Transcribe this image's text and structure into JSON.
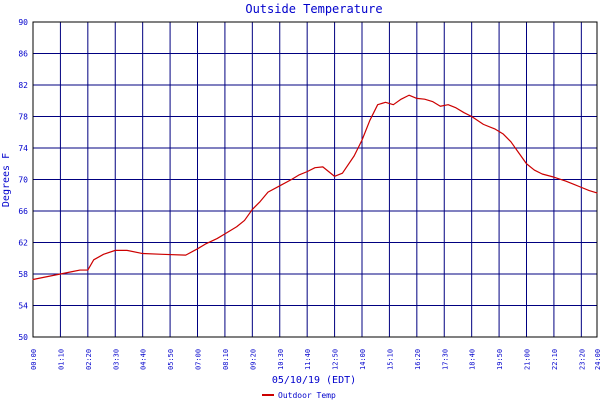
{
  "chart_data": {
    "type": "line",
    "title": "Outside Temperature",
    "xlabel": "05/10/19 (EDT)",
    "ylabel": "Degrees F",
    "ylim": [
      50,
      90
    ],
    "xlim": [
      "00:00",
      "24:00"
    ],
    "grid": true,
    "legend_placement": "bottom-center",
    "colors": {
      "series": "#cc0000",
      "grid": "#000080",
      "text": "#0000cc",
      "axis": "#000000",
      "background": "#ffffff"
    },
    "y_ticks": [
      90,
      86,
      82,
      78,
      74,
      70,
      66,
      62,
      58,
      54,
      50
    ],
    "x_tick_labels": [
      "00:00",
      "01:10",
      "02:20",
      "03:30",
      "04:40",
      "05:50",
      "07:00",
      "08:10",
      "09:20",
      "10:30",
      "11:40",
      "12:50",
      "14:00",
      "15:10",
      "16:20",
      "17:30",
      "18:40",
      "19:50",
      "21:00",
      "22:10",
      "23:20",
      "24:00"
    ],
    "series": [
      {
        "name": "Outdoor Temp",
        "x": [
          "00:00",
          "00:30",
          "01:10",
          "01:40",
          "02:00",
          "02:20",
          "02:35",
          "03:00",
          "03:30",
          "04:00",
          "04:40",
          "05:30",
          "06:30",
          "07:00",
          "07:20",
          "07:50",
          "08:10",
          "08:40",
          "09:00",
          "09:20",
          "09:40",
          "10:00",
          "10:30",
          "11:00",
          "11:20",
          "11:40",
          "12:00",
          "12:20",
          "12:50",
          "13:10",
          "13:40",
          "14:00",
          "14:20",
          "14:40",
          "15:00",
          "15:20",
          "15:40",
          "16:00",
          "16:20",
          "16:40",
          "17:00",
          "17:20",
          "17:40",
          "18:00",
          "18:20",
          "18:40",
          "19:10",
          "19:40",
          "20:00",
          "20:20",
          "20:40",
          "21:00",
          "21:20",
          "21:40",
          "22:10",
          "22:40",
          "23:00",
          "23:20",
          "23:40",
          "24:00"
        ],
        "values": [
          57.3,
          57.6,
          58.0,
          58.3,
          58.5,
          58.5,
          59.8,
          60.5,
          61.0,
          61.0,
          60.6,
          60.5,
          60.4,
          61.2,
          61.8,
          62.5,
          63.1,
          64.0,
          64.8,
          66.2,
          67.2,
          68.4,
          69.2,
          70.0,
          70.6,
          71.0,
          71.5,
          71.6,
          70.4,
          70.8,
          73.0,
          75.0,
          77.5,
          79.5,
          79.8,
          79.5,
          80.2,
          80.7,
          80.3,
          80.2,
          79.9,
          79.3,
          79.5,
          79.1,
          78.5,
          78.0,
          77.0,
          76.4,
          75.8,
          74.8,
          73.4,
          72.0,
          71.2,
          70.7,
          70.3,
          69.8,
          69.4,
          69.0,
          68.6,
          68.3
        ]
      }
    ]
  }
}
